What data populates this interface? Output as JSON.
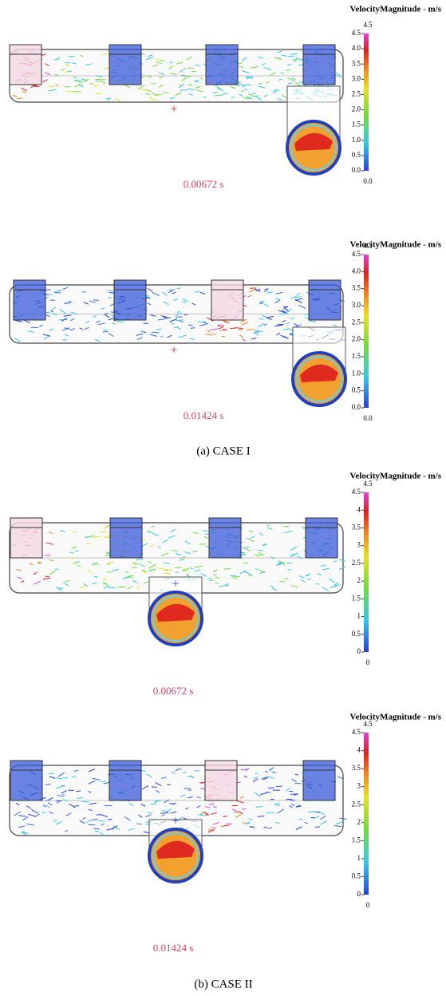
{
  "panels": [
    {
      "colorbar": {
        "title": "VelocityMagnitude - m/s",
        "max_label": "4.5",
        "ticks": [
          "4.5",
          "4.0",
          "3.5",
          "3.0",
          "2.5",
          "2.0",
          "1.5",
          "1.0",
          "0.5",
          "0.0"
        ],
        "min_label": "0.0"
      },
      "time": "0.00672 s"
    },
    {
      "colorbar": {
        "title": "VelocityMagnitude - m/s",
        "max_label": "4.5",
        "ticks": [
          "4.5",
          "4.0",
          "3.5",
          "3.0",
          "2.5",
          "2.0",
          "1.5",
          "1.0",
          "0.5",
          "0.0"
        ],
        "min_label": "0.0"
      },
      "time": "0.01424 s"
    },
    {
      "colorbar": {
        "title": "VelocityMagnitude - m/s",
        "max_label": "4.5",
        "ticks": [
          "4.5",
          "4",
          "3.5",
          "3",
          "2.5",
          "2",
          "1.5",
          "1",
          "0.5",
          "0"
        ],
        "min_label": "0"
      },
      "time": "0.00672 s"
    },
    {
      "colorbar": {
        "title": "VelocityMagnitude - m/s",
        "max_label": "4.5",
        "ticks": [
          "4.5",
          "4",
          "3.5",
          "3",
          "2.5",
          "2",
          "1.5",
          "1",
          "0.5",
          "0"
        ],
        "min_label": "0"
      },
      "time": "0.01424 s"
    }
  ],
  "captions": [
    "(a) CASE I",
    "(b) CASE II"
  ]
}
